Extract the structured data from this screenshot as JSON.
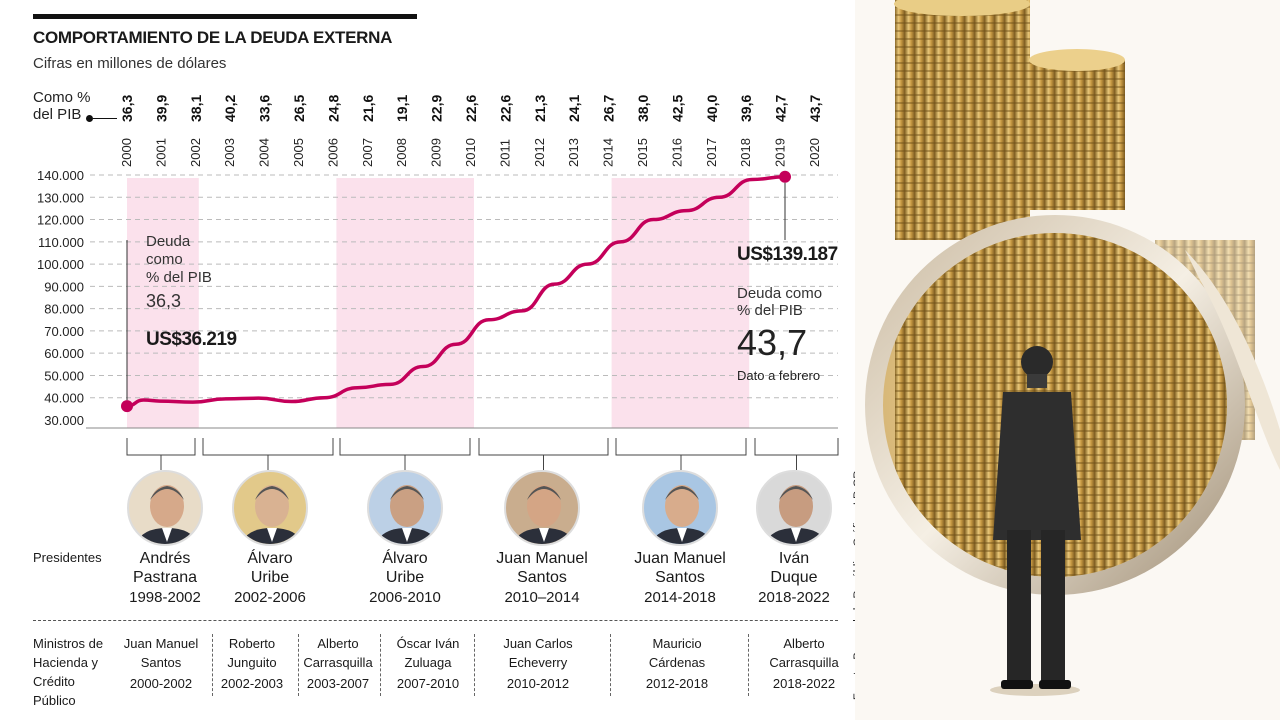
{
  "header": {
    "title": "COMPORTAMIENTO DE LA DEUDA EXTERNA",
    "subtitle": "Cifras en millones de dólares",
    "pib_label_1": "Como %",
    "pib_label_2": "del PIB"
  },
  "chart_data": {
    "type": "line",
    "title": "COMPORTAMIENTO DE LA DEUDA EXTERNA",
    "subtitle": "Cifras en millones de dólares",
    "years": [
      "2000",
      "2001",
      "2002",
      "2003",
      "2004",
      "2005",
      "2006",
      "2007",
      "2008",
      "2009",
      "2010",
      "2011",
      "2012",
      "2013",
      "2014",
      "2015",
      "2016",
      "2017",
      "2018",
      "2019",
      "2020"
    ],
    "pct_pib": [
      "36,3",
      "39,9",
      "38,1",
      "40,2",
      "33,6",
      "26,5",
      "24,8",
      "21,6",
      "19,1",
      "22,9",
      "22,6",
      "22,6",
      "21,3",
      "24,1",
      "26,7",
      "38,0",
      "42,5",
      "40,0",
      "39,6",
      "42,7",
      "43,7"
    ],
    "series": [
      {
        "x": [
          2000,
          2000.5,
          2001,
          2002,
          2003,
          2004,
          2005,
          2006,
          2007,
          2008,
          2009,
          2010,
          2011,
          2012,
          2013,
          2014,
          2015,
          2016,
          2017,
          2018,
          2019,
          2020
        ],
        "y": [
          36219,
          39000,
          38500,
          38000,
          39500,
          39800,
          38300,
          40000,
          44500,
          46000,
          54000,
          64000,
          75000,
          79000,
          91000,
          100000,
          110000,
          120000,
          124000,
          130000,
          138000,
          139187
        ]
      }
    ],
    "y_ticks": [
      "140.000",
      "130.000",
      "120.000",
      "110.000",
      "100.000",
      "90.000",
      "80.000",
      "70.000",
      "60.000",
      "50.000",
      "40.000",
      "30.000"
    ],
    "ylim": [
      30000,
      140000
    ],
    "shaded_periods": [
      [
        2000,
        2002
      ],
      [
        2006,
        2010
      ],
      [
        2014,
        2018
      ]
    ],
    "colors": {
      "line": "#c4005a",
      "shade": "#fbe1ec",
      "grid": "#bbbbbb"
    }
  },
  "callouts": {
    "left_text": [
      "Deuda",
      "como",
      "% del PIB"
    ],
    "left_pct": "36,3",
    "left_value": "US$36.219",
    "right_value": "US$139.187",
    "right_text": [
      "Deuda como",
      "% del PIB"
    ],
    "right_pct": "43,7",
    "right_note": "Dato a febrero"
  },
  "presidents_label": "Presidentes",
  "presidents": [
    {
      "line1": "Andrés",
      "line2": "Pastrana",
      "term": "1998-2002"
    },
    {
      "line1": "Álvaro",
      "line2": "Uribe",
      "term": "2002-2006"
    },
    {
      "line1": "Álvaro",
      "line2": "Uribe",
      "term": "2006-2010"
    },
    {
      "line1": "Juan Manuel",
      "line2": "Santos",
      "term": "2010–2014"
    },
    {
      "line1": "Juan Manuel",
      "line2": "Santos",
      "term": "2014-2018"
    },
    {
      "line1": "Iván",
      "line2": "Duque",
      "term": "2018-2022"
    }
  ],
  "ministers_label": [
    "Ministros de",
    "Hacienda y",
    "Crédito",
    "Público"
  ],
  "ministers": [
    {
      "line1": "Juan Manuel",
      "line2": "Santos",
      "term": "2000-2002"
    },
    {
      "line1": "Roberto",
      "line2": "Junguito",
      "term": "2002-2003"
    },
    {
      "line1": "Alberto",
      "line2": "Carrasquilla",
      "term": "2003-2007"
    },
    {
      "line1": "Óscar Iván",
      "line2": "Zuluaga",
      "term": "2007-2010"
    },
    {
      "line1": "Juan Carlos",
      "line2": "Echeverry",
      "term": "2010-2012"
    },
    {
      "line1": "Mauricio",
      "line2": "Cárdenas",
      "term": "2012-2018"
    },
    {
      "line1": "Alberto",
      "line2": "Carrasquilla",
      "term": "2018-2022"
    }
  ],
  "source": "Fuente: Banco de la República   Gráfico: LR-GR"
}
